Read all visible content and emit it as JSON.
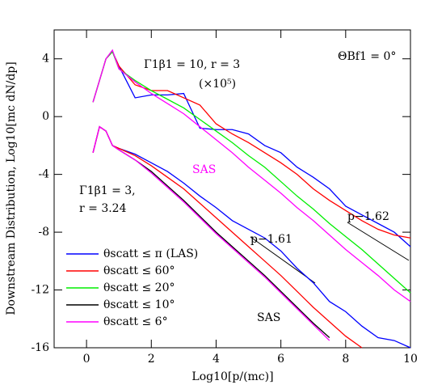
{
  "chart_data": {
    "type": "line",
    "xlabel": "Log10[p/(mc)]",
    "ylabel": "Downstream Distribution,  Log10[mc dN/dp]",
    "x": [
      0.2,
      0.4,
      0.6,
      0.8,
      1,
      1.5,
      2,
      2.5,
      3,
      3.5,
      4,
      4.5,
      5,
      5.5,
      6,
      6.5,
      7,
      7.5,
      8,
      8.5,
      9,
      9.5,
      10
    ],
    "xlim": [
      -1,
      10
    ],
    "xticks": [
      0,
      2,
      4,
      6,
      8,
      10
    ],
    "ylim": [
      -16,
      6
    ],
    "yticks": [
      -16,
      -12,
      -8,
      -4,
      0,
      4
    ],
    "legend": "lower left",
    "series": [
      {
        "name": "θscatt ≤ π (LAS)",
        "color": "#0000ff",
        "values": [
          1,
          2.5,
          4,
          4.5,
          3.5,
          1.3,
          1.5,
          1.5,
          1.6,
          -0.8,
          -0.9,
          -0.9,
          -1.2,
          -2,
          -2.5,
          -3.5,
          -4.2,
          -5,
          -6.2,
          -6.8,
          -7.4,
          -8,
          -9
        ]
      },
      {
        "name": "θscatt ≤ 60°",
        "color": "#ff0000",
        "values": [
          1,
          2.5,
          4,
          4.5,
          3.5,
          2.2,
          1.8,
          1.8,
          1.3,
          0.8,
          -0.5,
          -1.2,
          -1.8,
          -2.5,
          -3.2,
          -4,
          -5,
          -5.8,
          -6.5,
          -7.2,
          -7.8,
          -8.2,
          -8.4
        ]
      },
      {
        "name": "θscatt ≤ 20°",
        "color": "#00ee00",
        "values": [
          1,
          2.5,
          4,
          4.5,
          3.3,
          2.5,
          1.8,
          1.2,
          0.6,
          -0.2,
          -1,
          -1.8,
          -2.7,
          -3.5,
          -4.5,
          -5.5,
          -6.4,
          -7.4,
          -8.3,
          -9.2,
          -10.2,
          -11.2,
          -12.2
        ]
      },
      {
        "name": "θscatt ≤ 10°",
        "color": "#000000",
        "values": [
          -2.5,
          -0.7,
          -1,
          -2,
          -2.3,
          -3,
          -3.8,
          -4.8,
          -5.8,
          -6.9,
          -8,
          -9,
          -10,
          -11,
          -12.1,
          -13.2,
          -14.3,
          -15.3,
          null,
          null,
          null,
          null,
          null
        ]
      },
      {
        "name": "θscatt ≤ 6°",
        "color": "#ff00ff",
        "values": [
          1,
          2.5,
          4,
          4.6,
          3.3,
          2.4,
          1.6,
          0.9,
          0.2,
          -0.7,
          -1.6,
          -2.5,
          -3.5,
          -4.4,
          -5.3,
          -6.3,
          -7.2,
          -8.2,
          -9.2,
          -10.1,
          -11,
          -12,
          -12.8
        ]
      },
      {
        "color": "#0000ff",
        "values": [
          -2.5,
          -0.7,
          -1,
          -2,
          -2.2,
          -2.6,
          -3.2,
          -3.8,
          -4.6,
          -5.5,
          -6.3,
          -7.2,
          -7.8,
          -8.4,
          -9.3,
          -10.5,
          -11.5,
          -12.8,
          -13.5,
          -14.5,
          -15.3,
          -15.5,
          -16
        ]
      },
      {
        "color": "#ff0000",
        "values": [
          -2.5,
          -0.7,
          -1,
          -2,
          -2.2,
          -2.7,
          -3.4,
          -4.2,
          -5,
          -6,
          -7,
          -8,
          -9,
          -10,
          -11,
          -12.1,
          -13.2,
          -14.2,
          -15.2,
          -16,
          null,
          null,
          null
        ]
      },
      {
        "color": "#ff00ff",
        "values": [
          -2.5,
          -0.7,
          -1,
          -2,
          -2.3,
          -3,
          -3.9,
          -4.9,
          -5.9,
          -7,
          -8.1,
          -9.1,
          -10.1,
          -11.1,
          -12.2,
          -13.3,
          -14.4,
          -15.5,
          null,
          null,
          null,
          null,
          null
        ]
      }
    ],
    "annotations": [
      "Γ1β1 = 10,  r = 3",
      "(×10⁵)",
      "ΘBf1 = 0°",
      "SAS",
      "Γ1β1 = 3,",
      "r = 3.24",
      "p−1.62",
      "p−1.61",
      "SAS"
    ]
  }
}
